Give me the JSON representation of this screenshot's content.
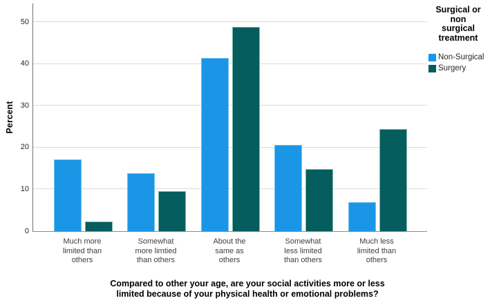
{
  "chart_data": {
    "type": "bar",
    "title": "",
    "categories": [
      "Much more limited than others",
      "Somewhat more limtied than others",
      "About the same as others",
      "Somewhat less limited than others",
      "Much less limited than others"
    ],
    "category_lines": [
      [
        "Much more",
        "limited than",
        "others"
      ],
      [
        "Somewhat",
        "more limtied",
        "than others"
      ],
      [
        "About the",
        "same as",
        "others"
      ],
      [
        "Somewhat",
        "less limited",
        "than others"
      ],
      [
        "Much less",
        "limited than",
        "others"
      ]
    ],
    "series": [
      {
        "name": "Non-Surgical",
        "color": "#1b96e6",
        "border_color": "#74c0ef",
        "values": [
          17.2,
          13.8,
          41.4,
          20.7,
          6.9
        ]
      },
      {
        "name": "Surgery",
        "color": "#055d5d",
        "border_color": "#7fb7b7",
        "values": [
          2.3,
          9.5,
          48.9,
          14.9,
          24.4
        ]
      }
    ],
    "ylabel": "Percent",
    "xlabel": "Compared to other your age, are your social activities more or less limited because of your physical health or emotional problems?",
    "xlabel_lines": [
      "Compared to other your age, are your social activities more or less",
      "limited because of your physical health or emotional problems?"
    ],
    "ylim": [
      0,
      54.5
    ],
    "yticks": [
      0,
      10,
      20,
      30,
      40,
      50
    ],
    "grid": true,
    "legend_position": "right",
    "legend_title": "Surgical or non surgical treatment",
    "legend_title_lines": [
      "Surgical or",
      "non",
      "surgical",
      "treatment"
    ],
    "colors": {
      "gridline": "#d9d9d9",
      "y_axis": "#707070",
      "x_axis": "#8a8a8a",
      "tick_text": "#262626",
      "category_text": "#3d3d3d",
      "title_text": "#000000"
    }
  }
}
